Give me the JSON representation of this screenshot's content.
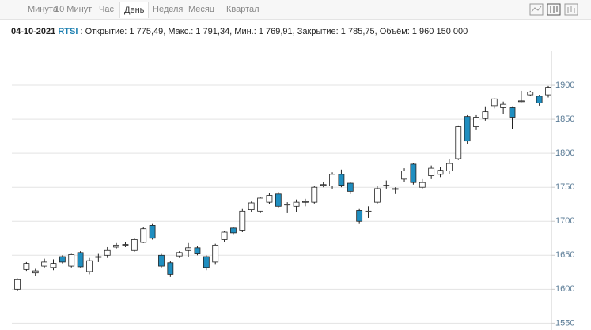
{
  "toolbar": {
    "tabs": [
      "Минута",
      "10 Минут",
      "Час",
      "День",
      "Неделя",
      "Месяц",
      "Квартал"
    ],
    "active": 3
  },
  "info": {
    "date": "04-10-2021",
    "ticker": "RTSI",
    "details": ": Открытие: 1 775,49, Макс.: 1 791,34, Мин.: 1 769,91, Закрытие: 1 785,75, Объём: 1 960 150 000"
  },
  "chart_data": {
    "type": "candlestick",
    "open": [
      1600,
      1629,
      1624,
      1634,
      1632,
      1648,
      1634,
      1654,
      1626,
      1647,
      1650,
      1662,
      1665,
      1657,
      1669,
      1694,
      1650,
      1639,
      1649,
      1657,
      1661,
      1648,
      1640,
      1673,
      1690,
      1687,
      1717,
      1715,
      1728,
      1740,
      1724,
      1722,
      1728,
      1728,
      1753,
      1752,
      1769,
      1756,
      1716,
      1714,
      1728,
      1752,
      1747,
      1762,
      1784,
      1750,
      1767,
      1769,
      1774,
      1792,
      1854,
      1839,
      1851,
      1870,
      1867,
      1867,
      1876,
      1886,
      1884,
      1886
    ],
    "high": [
      1616,
      1640,
      1630,
      1645,
      1644,
      1650,
      1652,
      1656,
      1646,
      1652,
      1662,
      1668,
      1669,
      1675,
      1692,
      1696,
      1652,
      1642,
      1656,
      1668,
      1664,
      1650,
      1667,
      1686,
      1692,
      1718,
      1729,
      1736,
      1741,
      1743,
      1728,
      1732,
      1733,
      1752,
      1758,
      1772,
      1776,
      1758,
      1718,
      1722,
      1752,
      1760,
      1750,
      1778,
      1786,
      1762,
      1782,
      1780,
      1791,
      1841,
      1856,
      1856,
      1869,
      1881,
      1876,
      1869,
      1892,
      1892,
      1886,
      1899
    ],
    "low": [
      1598,
      1627,
      1620,
      1632,
      1628,
      1638,
      1632,
      1632,
      1622,
      1640,
      1646,
      1660,
      1662,
      1655,
      1668,
      1673,
      1632,
      1618,
      1646,
      1648,
      1650,
      1628,
      1636,
      1670,
      1680,
      1684,
      1714,
      1712,
      1725,
      1720,
      1712,
      1714,
      1722,
      1726,
      1750,
      1748,
      1750,
      1740,
      1696,
      1705,
      1726,
      1748,
      1740,
      1758,
      1754,
      1748,
      1762,
      1765,
      1770,
      1790,
      1814,
      1834,
      1848,
      1866,
      1858,
      1835,
      1875,
      1884,
      1870,
      1882
    ],
    "close": [
      1614,
      1638,
      1627,
      1640,
      1638,
      1640,
      1651,
      1633,
      1642,
      1648,
      1657,
      1665,
      1666,
      1673,
      1689,
      1675,
      1634,
      1622,
      1654,
      1661,
      1652,
      1632,
      1665,
      1684,
      1683,
      1715,
      1727,
      1734,
      1738,
      1722,
      1725,
      1728,
      1729,
      1750,
      1754,
      1769,
      1753,
      1744,
      1700,
      1715,
      1748,
      1753,
      1748,
      1774,
      1757,
      1757,
      1778,
      1775,
      1785,
      1839,
      1818,
      1853,
      1861,
      1880,
      1872,
      1853,
      1877,
      1890,
      1874,
      1897
    ],
    "up_color": "#ffffff",
    "down_color": "#1f8ec0",
    "outline_color": "#222222",
    "ylim": [
      1540,
      1950
    ],
    "yticks": [
      1550,
      1600,
      1650,
      1700,
      1750,
      1800,
      1850,
      1900
    ],
    "grid": true
  }
}
